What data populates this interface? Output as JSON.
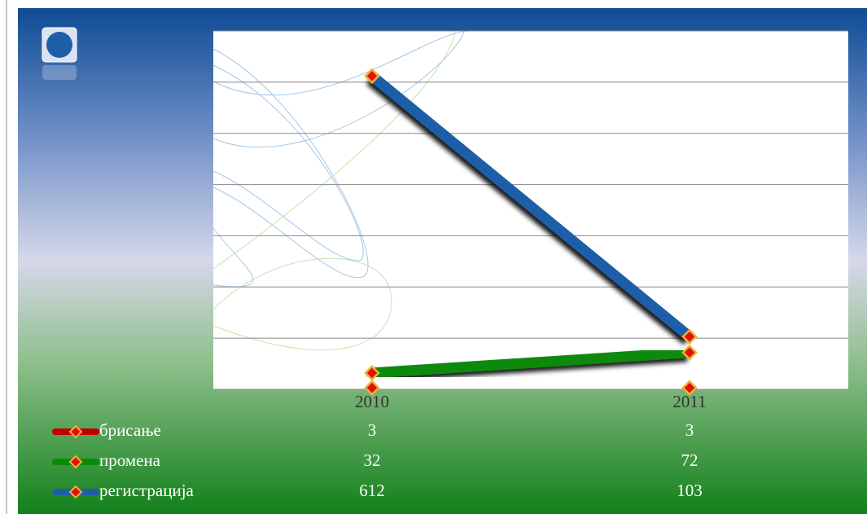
{
  "chart_data": {
    "type": "line",
    "categories": [
      "2010",
      "2011"
    ],
    "series": [
      {
        "name": "брисање",
        "color": "#c00000",
        "values": [
          3,
          3
        ]
      },
      {
        "name": "промена",
        "color": "#0a8a0a",
        "values": [
          32,
          72
        ]
      },
      {
        "name": "регистрација",
        "color": "#1f5fa8",
        "values": [
          612,
          103
        ]
      }
    ],
    "ylim": [
      0,
      700
    ],
    "yticks": [
      0,
      100,
      200,
      300,
      400,
      500,
      600,
      700
    ],
    "grid": true
  }
}
